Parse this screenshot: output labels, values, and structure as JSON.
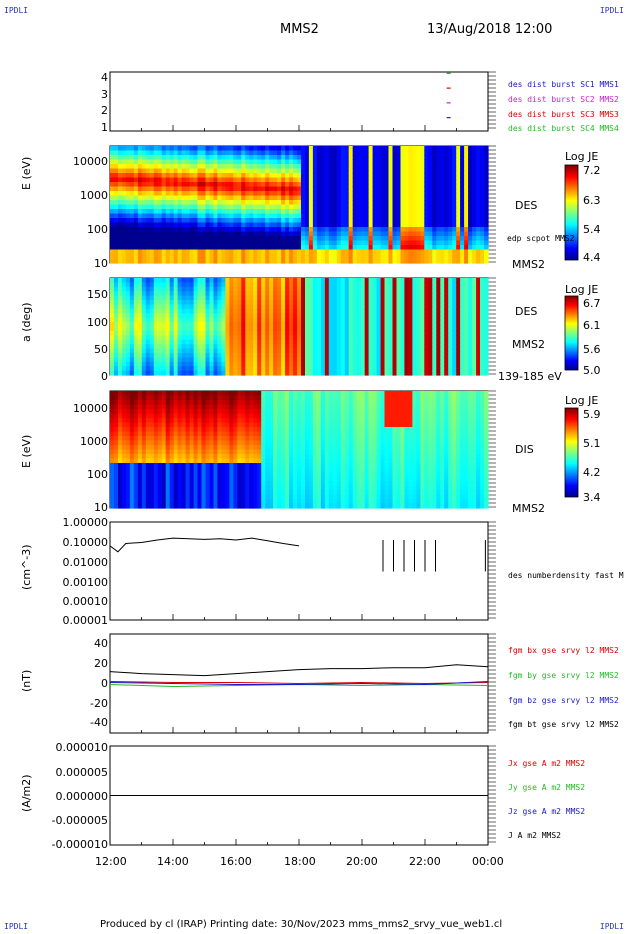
{
  "corner_labels": {
    "top_left": "IPDLI",
    "top_right": "IPDLI",
    "bottom_left": "IPDLI",
    "bottom_right": "IPDLI"
  },
  "header": {
    "spacecraft": "MMS2",
    "datetime": "13/Aug/2018 12:00"
  },
  "footer": "Produced by cl (IRAP)   Printing date: 30/Nov/2023   mms_mms2_srvy_vue_web1.cl",
  "colors": {
    "blue": "#1a1acc",
    "magenta": "#cc22cc",
    "red": "#dd0000",
    "green": "#22bb22",
    "black": "#000000",
    "corner": "#2233bb"
  },
  "chart_data": [
    {
      "type": "scatter",
      "panel": "spacecraft-availability",
      "yticks": [
        "4",
        "3",
        "2",
        "1"
      ],
      "series": [
        {
          "name": "des dist burst SC1 MMS1",
          "color": "#1a1acc",
          "y": 1,
          "x": [
            "22:45"
          ]
        },
        {
          "name": "des dist burst SC2 MMS2",
          "color": "#cc22cc",
          "y": 2,
          "x": [
            "22:45"
          ]
        },
        {
          "name": "des dist burst SC3 MMS3",
          "color": "#dd0000",
          "y": 3,
          "x": [
            "22:45"
          ]
        },
        {
          "name": "des dist burst SC4 MMS4",
          "color": "#22bb22",
          "y": 4,
          "x": [
            "22:45"
          ]
        }
      ]
    },
    {
      "type": "heatmap",
      "panel": "des-energy-spectrogram",
      "ylabel": "E (eV)",
      "y_scale": "log",
      "yticks": [
        "10000",
        "1000",
        "100",
        "10"
      ],
      "label": "DES",
      "sublabel": "MMS2",
      "overlay_label": "edp scpot MMS2",
      "colorbar": {
        "title": "Log JE",
        "ticks": [
          "7.2",
          "6.3",
          "5.4",
          "4.4"
        ],
        "range": [
          4.4,
          7.2
        ]
      }
    },
    {
      "type": "heatmap",
      "panel": "des-pitch-angle",
      "ylabel": "a (deg)",
      "yticks": [
        "150",
        "100",
        "50",
        "0"
      ],
      "label": "DES",
      "sublabel": "MMS2",
      "energy_range": "139-185 eV",
      "colorbar": {
        "title": "Log JE",
        "ticks": [
          "6.7",
          "6.1",
          "5.6",
          "5.0"
        ],
        "range": [
          5.0,
          6.7
        ]
      }
    },
    {
      "type": "heatmap",
      "panel": "dis-energy-spectrogram",
      "ylabel": "E (eV)",
      "y_scale": "log",
      "yticks": [
        "10000",
        "1000",
        "100",
        "10"
      ],
      "label": "DIS",
      "sublabel": "MMS2",
      "colorbar": {
        "title": "Log JE",
        "ticks": [
          "5.9",
          "5.1",
          "4.2",
          "3.4"
        ],
        "range": [
          3.4,
          5.9
        ]
      }
    },
    {
      "type": "line",
      "panel": "density",
      "ylabel": "(cm^-3)",
      "y_scale": "log",
      "yticks": [
        "1.00000",
        "0.10000",
        "0.01000",
        "0.00100",
        "0.00010",
        "0.00001"
      ],
      "series": [
        {
          "name": "des numberdensity fast M",
          "color": "#000000",
          "x": [
            "12:00",
            "12:15",
            "12:30",
            "13:00",
            "13:30",
            "14:00",
            "14:30",
            "15:00",
            "15:30",
            "16:00",
            "16:30",
            "17:00",
            "17:30",
            "18:00"
          ],
          "y": [
            0.06,
            0.03,
            0.08,
            0.09,
            0.12,
            0.15,
            0.14,
            0.13,
            0.14,
            0.12,
            0.15,
            0.11,
            0.08,
            0.06
          ]
        }
      ]
    },
    {
      "type": "line",
      "panel": "magnetic-field",
      "ylabel": "(nT)",
      "yticks": [
        "40",
        "20",
        "0",
        "-20",
        "-40"
      ],
      "ylim": [
        -50,
        50
      ],
      "series": [
        {
          "name": "fgm bx gse srvy l2 MMS2",
          "color": "#dd0000",
          "x": [
            "12:00",
            "14:00",
            "16:00",
            "18:00",
            "20:00",
            "22:00",
            "00:00"
          ],
          "y": [
            2,
            1,
            1,
            0,
            1,
            0,
            1
          ]
        },
        {
          "name": "fgm by gse srvy l2 MMS2",
          "color": "#22bb22",
          "x": [
            "12:00",
            "14:00",
            "16:00",
            "18:00",
            "20:00",
            "22:00",
            "00:00"
          ],
          "y": [
            -1,
            -3,
            -2,
            -1,
            -2,
            -1,
            -2
          ]
        },
        {
          "name": "fgm bz gse srvy l2 MMS2",
          "color": "#1a1acc",
          "x": [
            "12:00",
            "14:00",
            "16:00",
            "18:00",
            "20:00",
            "22:00",
            "00:00"
          ],
          "y": [
            1,
            0,
            -1,
            -1,
            0,
            -1,
            2
          ]
        },
        {
          "name": "fgm bt gse srvy l2 MMS2",
          "color": "#000000",
          "x": [
            "12:00",
            "13:00",
            "14:00",
            "15:00",
            "16:00",
            "17:00",
            "18:00",
            "19:00",
            "20:00",
            "21:00",
            "22:00",
            "23:00",
            "00:00"
          ],
          "y": [
            12,
            10,
            9,
            8,
            10,
            12,
            14,
            15,
            15,
            16,
            16,
            19,
            17
          ]
        }
      ]
    },
    {
      "type": "line",
      "panel": "current-density",
      "ylabel": "(A/m2)",
      "yticks": [
        "0.000010",
        "0.000005",
        "0.000000",
        "-0.000005",
        "-0.000010"
      ],
      "ylim": [
        -1e-05,
        1e-05
      ],
      "x_ticks": [
        "12:00",
        "14:00",
        "16:00",
        "18:00",
        "20:00",
        "22:00",
        "00:00"
      ],
      "series": [
        {
          "name": "Jx gse A m2 MMS2",
          "color": "#dd0000",
          "x": [
            "12:00",
            "00:00"
          ],
          "y": [
            0,
            0
          ]
        },
        {
          "name": "Jy gse A m2 MMS2",
          "color": "#22bb22",
          "x": [
            "12:00",
            "00:00"
          ],
          "y": [
            0,
            0
          ]
        },
        {
          "name": "Jz gse A m2 MMS2",
          "color": "#1a1acc",
          "x": [
            "12:00",
            "00:00"
          ],
          "y": [
            0,
            0
          ]
        },
        {
          "name": "J A m2 MMS2",
          "color": "#000000",
          "x": [
            "12:00",
            "00:00"
          ],
          "y": [
            0,
            0
          ]
        }
      ]
    }
  ]
}
